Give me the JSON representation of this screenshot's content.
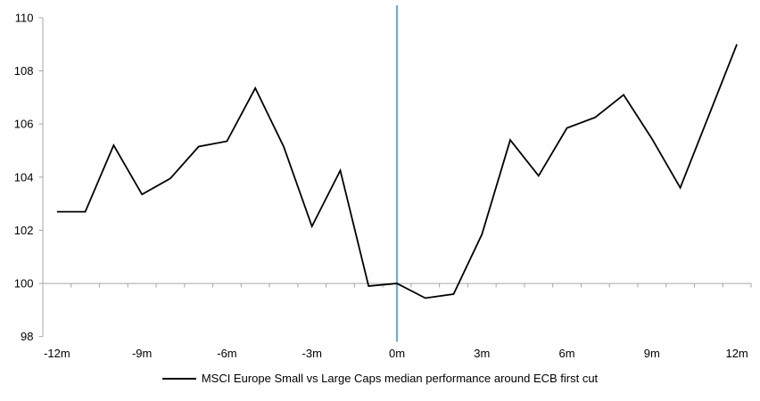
{
  "chart": {
    "colors": {
      "series": "#000000",
      "axis": "#A6A6A6",
      "tick": "#A6A6A6",
      "event_line": "#7BA7CD",
      "text": "#000000",
      "background": "#FFFFFF"
    },
    "legend": {
      "label": "MSCI Europe Small vs Large Caps median performance around ECB first cut"
    }
  },
  "chart_data": {
    "type": "line",
    "title": "",
    "xlabel": "",
    "ylabel": "",
    "x": [
      -12,
      -11,
      -10,
      -9,
      -8,
      -7,
      -6,
      -5,
      -4,
      -3,
      -2,
      -1,
      0,
      1,
      2,
      3,
      4,
      5,
      6,
      7,
      8,
      9,
      10,
      11,
      12
    ],
    "series": [
      {
        "name": "MSCI Europe Small vs Large Caps median performance around ECB first cut",
        "color": "#000000",
        "values": [
          102.7,
          102.7,
          105.2,
          103.35,
          103.95,
          105.15,
          105.35,
          107.35,
          105.15,
          102.15,
          104.25,
          99.9,
          100.0,
          99.45,
          99.6,
          101.85,
          105.4,
          104.05,
          105.85,
          106.25,
          107.1,
          105.45,
          103.6,
          106.3,
          109.0
        ]
      }
    ],
    "x_ticks": [
      -12,
      -9,
      -6,
      -3,
      0,
      3,
      6,
      9,
      12
    ],
    "x_tick_labels": [
      "-12m",
      "-9m",
      "-6m",
      "-3m",
      "0m",
      "3m",
      "6m",
      "9m",
      "12m"
    ],
    "ylim": [
      98,
      110
    ],
    "y_ticks": [
      98,
      100,
      102,
      104,
      106,
      108,
      110
    ],
    "baseline": 100,
    "event_line_x": 0,
    "grid": false,
    "legend_position": "bottom"
  }
}
